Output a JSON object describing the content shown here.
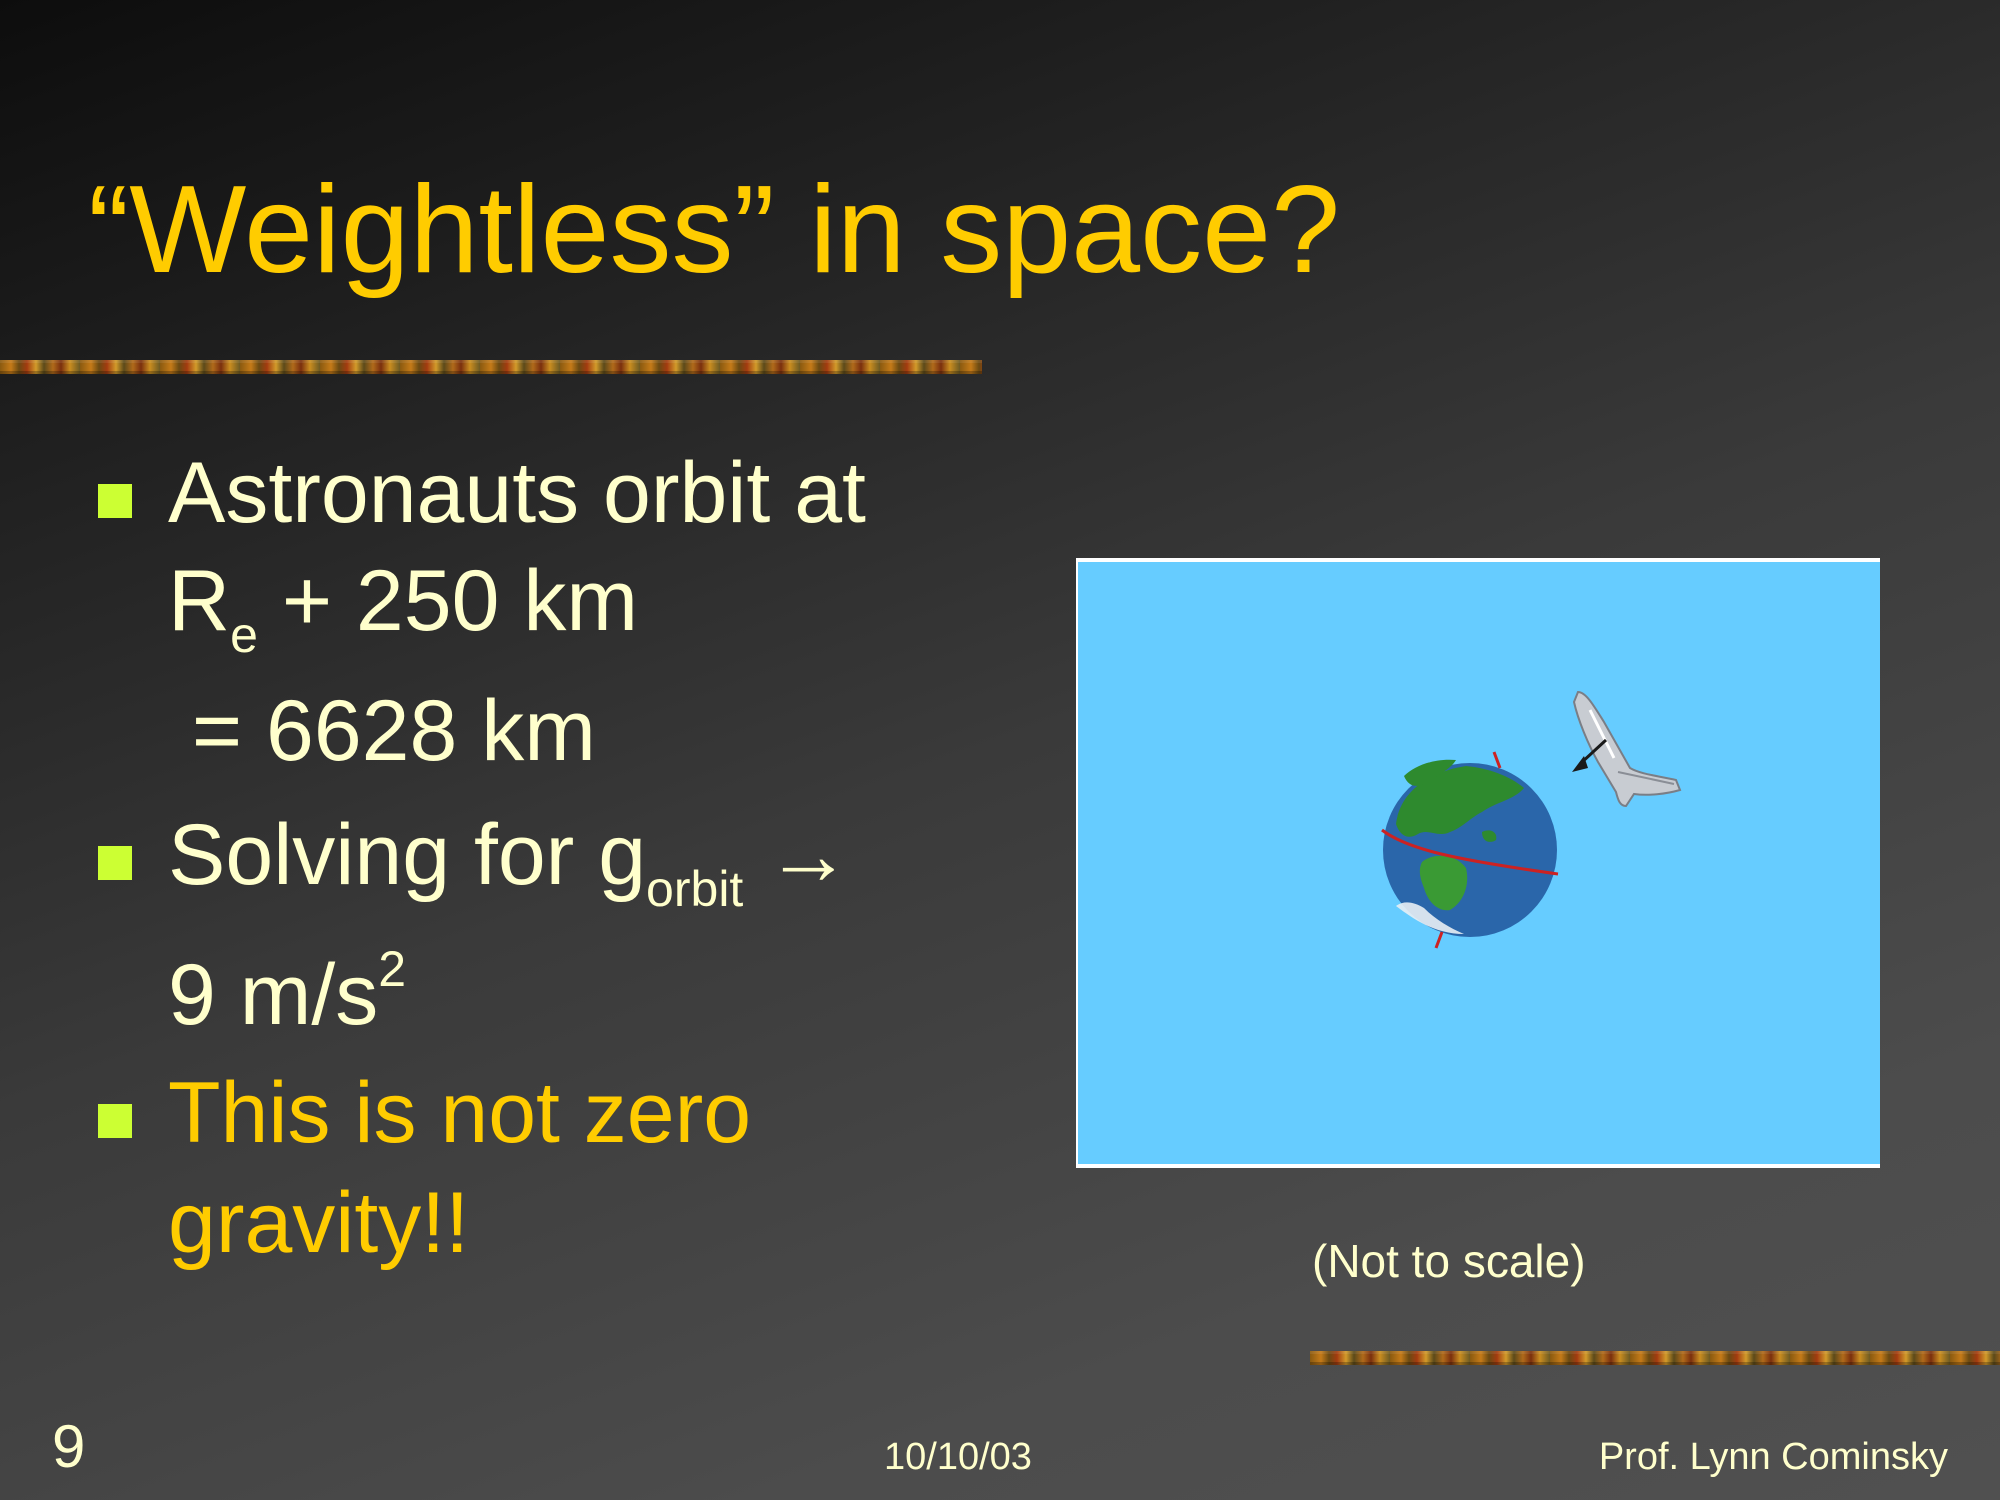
{
  "slide": {
    "title": "“Weightless” in space?",
    "bullets": [
      {
        "line1": "Astronauts orbit at",
        "line2_main": "R",
        "line2_sub": "e",
        "line2_rest": " + 250 km",
        "line3": " = 6628 km"
      },
      {
        "line1_main": "Solving for g",
        "line1_sub": "orbit",
        "line1_arrow": "→",
        "line2_main": "9 m/s",
        "line2_sup": "2"
      },
      {
        "line1": "This is not zero",
        "line2": "gravity!!"
      }
    ],
    "figure": {
      "caption": "(Not to scale)",
      "background": "#66ccff",
      "objects": [
        "earth-globe",
        "space-shuttle"
      ]
    },
    "footer": {
      "slide_number": "9",
      "date": "10/10/03",
      "author": "Prof. Lynn Cominsky"
    },
    "colors": {
      "title": "#ffcc00",
      "body_text": "#ffffcc",
      "highlight_text": "#ffcc00",
      "bullet": "#ccff33"
    }
  }
}
